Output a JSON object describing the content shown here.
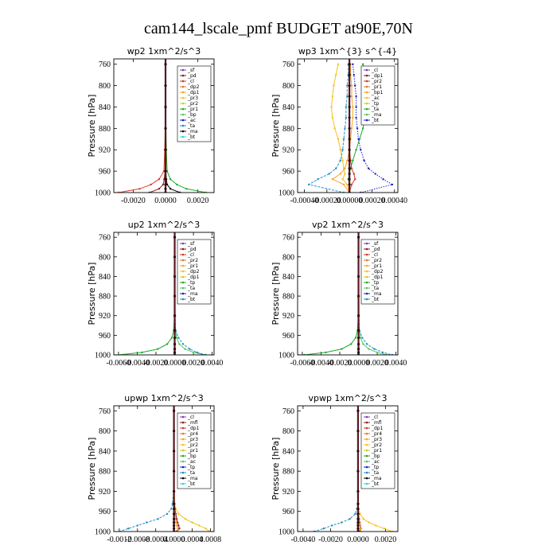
{
  "figure": {
    "title": "cam144_lscale_pmf  BUDGET at90E,70N"
  },
  "chart_data": [
    {
      "type": "line",
      "title": "wp2  1xm^2/s^3",
      "ylabel": "Pressure [hPa]",
      "xlabel": "",
      "ylim": [
        1000,
        750
      ],
      "y_ticks": [
        760,
        800,
        840,
        880,
        920,
        960,
        1000
      ],
      "xlim": [
        -0.0032,
        0.003
      ],
      "x_ticks": [
        -0.002,
        0.0,
        0.002
      ],
      "x_tick_labels": [
        "-0.0020",
        "0.0000",
        "0.0020"
      ],
      "legend": [
        "_sf",
        "_pd",
        "_cl",
        "_dp2",
        "_dp1",
        "_pr3",
        "_pr2",
        "_pr1",
        "_bp",
        "_ac",
        "_ta",
        "_ma",
        "_bt"
      ],
      "legend_position": "top-right",
      "y": [
        760,
        800,
        840,
        880,
        920,
        960,
        975,
        985,
        993,
        1000
      ],
      "series": [
        {
          "name": "_dp1",
          "color": "#e03a2e",
          "values": [
            0,
            0,
            0,
            -2e-05,
            -5e-05,
            -0.0001,
            -0.0004,
            -0.0009,
            -0.0016,
            -0.0029
          ]
        },
        {
          "name": "_ac",
          "color": "#1aab2a",
          "values": [
            0,
            0,
            0,
            2e-05,
            5e-05,
            0.0001,
            0.0003,
            0.0007,
            0.0013,
            0.0025
          ]
        },
        {
          "name": "_pr1",
          "color": "#8b1a1a",
          "values": [
            0,
            0,
            0,
            0,
            -1e-05,
            -3e-05,
            -8e-05,
            -0.00015,
            -0.0004,
            -0.001
          ]
        },
        {
          "name": "_bp",
          "color": "#000000",
          "values": [
            0,
            0,
            0,
            0,
            1e-05,
            2e-05,
            5e-05,
            0.0001,
            0.0003,
            0.0009
          ]
        }
      ]
    },
    {
      "type": "line",
      "title": "wp3  1xm^{3} s^{-4}",
      "ylabel": "Pressure [hPa]",
      "xlabel": "",
      "ylim": [
        1000,
        750
      ],
      "y_ticks": [
        760,
        800,
        840,
        880,
        920,
        960,
        1000
      ],
      "xlim": [
        -0.00046,
        0.00043
      ],
      "x_ticks": [
        -0.0004,
        -0.0002,
        0.0,
        0.0002,
        0.0004
      ],
      "x_tick_labels": [
        "-0.00040",
        "-0.00020",
        "0.00000",
        "0.00020",
        "0.00040"
      ],
      "legend": [
        "_cl",
        "_dp1",
        "_pr2",
        "_pr1",
        "_bp1",
        "_ac",
        "_tp",
        "_ta",
        "_ma",
        "_bt"
      ],
      "legend_position": "top-right",
      "y": [
        760,
        780,
        800,
        820,
        840,
        860,
        880,
        900,
        920,
        940,
        955,
        965,
        975,
        985,
        1000
      ],
      "series": [
        {
          "name": "_pr2",
          "color": "#f5c21b",
          "values": [
            -0.0001,
            -0.00012,
            -0.00014,
            -0.00015,
            -0.00016,
            -0.00015,
            -0.00013,
            -0.0001,
            -8e-05,
            -6e-05,
            -5e-05,
            -4e-05,
            -6e-05,
            -2e-05,
            0
          ]
        },
        {
          "name": "_pr1",
          "color": "#f5a623",
          "values": [
            1e-05,
            1e-05,
            2e-05,
            2e-05,
            3e-05,
            3e-05,
            2e-05,
            1e-05,
            0,
            -2e-05,
            -4e-05,
            -8e-05,
            -0.00015,
            -5e-05,
            0
          ]
        },
        {
          "name": "_ac",
          "color": "#1aab2a",
          "values": [
            0.00012,
            0.00014,
            0.00015,
            0.00016,
            0.00016,
            0.00014,
            0.00012,
            9e-05,
            6e-05,
            3e-05,
            1e-05,
            0,
            -1e-05,
            0,
            0
          ]
        },
        {
          "name": "_tp",
          "color": "#1c1ccc",
          "values": [
            3e-05,
            4e-05,
            5e-05,
            6e-05,
            6e-05,
            6e-05,
            7e-05,
            8e-05,
            0.0001,
            0.00013,
            0.00017,
            0.00023,
            0.0003,
            0.00038,
            0.0001
          ]
        },
        {
          "name": "_ta",
          "color": "#1f8fc0",
          "values": [
            -1e-05,
            -1e-05,
            -2e-05,
            -2e-05,
            -3e-05,
            -3e-05,
            -4e-05,
            -5e-05,
            -6e-05,
            -8e-05,
            -0.00012,
            -0.00018,
            -0.00028,
            -0.00036,
            -5e-05
          ]
        },
        {
          "name": "_dp1",
          "color": "#d0392b",
          "values": [
            0,
            0,
            0,
            0,
            0,
            0,
            0,
            0,
            0,
            1e-05,
            2e-05,
            4e-05,
            5e-05,
            2e-05,
            0
          ]
        },
        {
          "name": "_cl",
          "color": "#7a3fb0",
          "values": [
            0,
            0,
            0,
            0,
            0,
            0,
            0,
            0,
            0,
            0,
            0,
            0,
            0,
            0,
            0
          ]
        }
      ]
    },
    {
      "type": "line",
      "title": "up2  1xm^2/s^3",
      "ylabel": "Pressure [hPa]",
      "xlabel": "",
      "ylim": [
        1000,
        750
      ],
      "y_ticks": [
        760,
        800,
        840,
        880,
        920,
        960,
        1000
      ],
      "xlim": [
        -0.0065,
        0.0042
      ],
      "x_ticks": [
        -0.006,
        -0.004,
        -0.002,
        0.0,
        0.002,
        0.004
      ],
      "x_tick_labels": [
        "-0.0060",
        "-0.0040",
        "-0.0020",
        "0.0000",
        "0.0020",
        "0.0040"
      ],
      "legend": [
        "_sf",
        "_pd",
        "_cl",
        "_pr2",
        "_pr1",
        "_dp2",
        "_dp1",
        "_tp",
        "_ta",
        "_ma",
        "_bt"
      ],
      "legend_position": "top-right",
      "y": [
        760,
        800,
        840,
        880,
        920,
        950,
        965,
        978,
        988,
        995,
        1000
      ],
      "series": [
        {
          "name": "_dp1",
          "color": "#1aab2a",
          "values": [
            0,
            0,
            0,
            0,
            -3e-05,
            -0.0001,
            -0.0003,
            -0.0008,
            -0.0018,
            -0.0035,
            -0.006
          ]
        },
        {
          "name": "_dp2",
          "color": "#5cc25c",
          "values": [
            0,
            0,
            0,
            0,
            2e-05,
            8e-05,
            0.0002,
            0.0005,
            0.0011,
            0.002,
            0.0033
          ]
        },
        {
          "name": "_ta",
          "color": "#1f8fc0",
          "values": [
            0,
            0,
            0,
            1e-05,
            5e-05,
            0.0001,
            0.0004,
            0.0009,
            0.0016,
            0.0024,
            0.0033
          ]
        },
        {
          "name": "_pd",
          "color": "#d0392b",
          "values": [
            0,
            0,
            0,
            0,
            0,
            0,
            -1e-05,
            -2e-05,
            -3e-05,
            -4e-05,
            -6e-05
          ]
        },
        {
          "name": "_sf",
          "color": "#8b1a1a",
          "values": [
            0,
            0,
            0,
            0,
            0,
            0,
            0,
            0,
            0,
            0,
            0
          ]
        }
      ]
    },
    {
      "type": "line",
      "title": "vp2  1xm^2/s^3",
      "ylabel": "Pressure [hPa]",
      "xlabel": "",
      "ylim": [
        1000,
        750
      ],
      "y_ticks": [
        760,
        800,
        840,
        880,
        920,
        960,
        1000
      ],
      "xlim": [
        -0.0065,
        0.0042
      ],
      "x_ticks": [
        -0.006,
        -0.004,
        -0.002,
        0.0,
        0.002,
        0.004
      ],
      "x_tick_labels": [
        "-0.0060",
        "-0.0040",
        "-0.0020",
        "0.0000",
        "0.0020",
        "0.0040"
      ],
      "legend": [
        "_sf",
        "_pd",
        "_cl",
        "_pr2",
        "_pr1",
        "_dp2",
        "_dp1",
        "_tp",
        "_ta",
        "_ma",
        "_bt"
      ],
      "legend_position": "top-right",
      "y": [
        760,
        800,
        840,
        880,
        920,
        950,
        965,
        978,
        988,
        995,
        1000
      ],
      "series": [
        {
          "name": "_dp1",
          "color": "#1aab2a",
          "values": [
            0,
            0,
            0,
            0,
            -3e-05,
            -0.0001,
            -0.0003,
            -0.0008,
            -0.0018,
            -0.0035,
            -0.0058
          ]
        },
        {
          "name": "_dp2",
          "color": "#5cc25c",
          "values": [
            0,
            0,
            0,
            0,
            2e-05,
            8e-05,
            0.0002,
            0.0005,
            0.0011,
            0.002,
            0.003
          ]
        },
        {
          "name": "_ta",
          "color": "#1f8fc0",
          "values": [
            0,
            0,
            0,
            1e-05,
            5e-05,
            0.0001,
            0.0004,
            0.0009,
            0.0017,
            0.0026,
            0.0036
          ]
        },
        {
          "name": "_pd",
          "color": "#d0392b",
          "values": [
            0,
            0,
            0,
            0,
            0,
            0,
            -1e-05,
            -2e-05,
            -3e-05,
            -4e-05,
            -6e-05
          ]
        },
        {
          "name": "_sf",
          "color": "#8b1a1a",
          "values": [
            0,
            0,
            0,
            0,
            0,
            0,
            0,
            0,
            0,
            0,
            0
          ]
        }
      ]
    },
    {
      "type": "line",
      "title": "upwp  1xm^2/s^3",
      "ylabel": "Pressure [hPa]",
      "xlabel": "",
      "ylim": [
        1000,
        750
      ],
      "y_ticks": [
        760,
        800,
        840,
        880,
        920,
        960,
        1000
      ],
      "xlim": [
        -0.00132,
        0.00088
      ],
      "x_ticks": [
        -0.0012,
        -0.0008,
        -0.0004,
        0.0,
        0.0004,
        0.0008
      ],
      "x_tick_labels": [
        "-0.0012",
        "-0.0008",
        "-0.0004",
        "0.0000",
        "0.0004",
        "0.0008"
      ],
      "legend": [
        "_cl",
        "_mfl",
        "_dp1",
        "_pr4",
        "_pr3",
        "_pr2",
        "_pr1",
        "_bp",
        "_ac",
        "_tp",
        "_ta",
        "_ma",
        "_bt"
      ],
      "legend_position": "top-right",
      "y": [
        760,
        800,
        840,
        880,
        920,
        945,
        955,
        965,
        975,
        982,
        988,
        994,
        1000
      ],
      "series": [
        {
          "name": "_ta",
          "color": "#1f8fc0",
          "values": [
            0,
            0,
            0,
            0,
            -1e-05,
            -3e-05,
            -6e-05,
            -0.00015,
            -0.00035,
            -0.0006,
            -0.0008,
            -0.001,
            -0.0012
          ]
        },
        {
          "name": "_pr2",
          "color": "#f5c21b",
          "values": [
            0,
            0,
            0,
            0,
            1e-05,
            2e-05,
            4e-05,
            0.0001,
            0.00025,
            0.0004,
            0.00055,
            0.0007,
            0.00078
          ]
        },
        {
          "name": "_dp1",
          "color": "#8b1a1a",
          "values": [
            0,
            0,
            0,
            0,
            0,
            1e-05,
            2e-05,
            4e-05,
            6e-05,
            8e-05,
            0.0001,
            0.00012,
            5e-05
          ]
        },
        {
          "name": "_pr1",
          "color": "#f5a623",
          "values": [
            0,
            0,
            0,
            0,
            0,
            0,
            1e-05,
            2e-05,
            3e-05,
            5e-05,
            6e-05,
            8e-05,
            0.0001
          ]
        },
        {
          "name": "_mfl",
          "color": "#7a1f2b",
          "values": [
            0,
            0,
            0,
            0,
            0,
            0,
            0,
            0,
            0,
            0,
            0,
            0,
            0
          ]
        }
      ]
    },
    {
      "type": "line",
      "title": "vpwp  1xm^2/s^3",
      "ylabel": "Pressure [hPa]",
      "xlabel": "",
      "ylim": [
        1000,
        750
      ],
      "y_ticks": [
        760,
        800,
        840,
        880,
        920,
        960,
        1000
      ],
      "xlim": [
        -0.0044,
        0.0029
      ],
      "x_ticks": [
        -0.004,
        -0.002,
        0.0,
        0.002
      ],
      "x_tick_labels": [
        "-0.0040",
        "-0.0020",
        "0.0000",
        "0.0020"
      ],
      "legend": [
        "_cl",
        "_mfl",
        "_dp1",
        "_pr4",
        "_pr3",
        "_pr2",
        "_pr1",
        "_bp",
        "_ac",
        "_tp",
        "_ta",
        "_ma",
        "_bt"
      ],
      "legend_position": "top-right",
      "y": [
        760,
        800,
        840,
        880,
        920,
        945,
        955,
        965,
        975,
        982,
        988,
        994,
        1000
      ],
      "series": [
        {
          "name": "_ta",
          "color": "#1f8fc0",
          "values": [
            0,
            0,
            0,
            0,
            0,
            -2e-05,
            -8e-05,
            -0.0002,
            -0.0006,
            -0.0012,
            -0.0019,
            -0.0025,
            -0.0032
          ]
        },
        {
          "name": "_pr2",
          "color": "#f5c21b",
          "values": [
            0,
            0,
            0,
            0,
            0,
            2e-05,
            5e-05,
            0.00015,
            0.0004,
            0.0008,
            0.0013,
            0.0019,
            0.0025
          ]
        },
        {
          "name": "_dp1",
          "color": "#8b1a1a",
          "values": [
            0,
            0,
            0,
            0,
            0,
            1e-05,
            2e-05,
            4e-05,
            8e-05,
            0.00012,
            0.00015,
            0.0002,
            8e-05
          ]
        },
        {
          "name": "_pr1",
          "color": "#f5a623",
          "values": [
            0,
            0,
            0,
            0,
            0,
            0,
            1e-05,
            2e-05,
            5e-05,
            8e-05,
            0.00012,
            0.00016,
            0.0002
          ]
        },
        {
          "name": "_mfl",
          "color": "#7a1f2b",
          "values": [
            0,
            0,
            0,
            0,
            0,
            0,
            0,
            0,
            0,
            0,
            0,
            0,
            0
          ]
        }
      ]
    }
  ]
}
